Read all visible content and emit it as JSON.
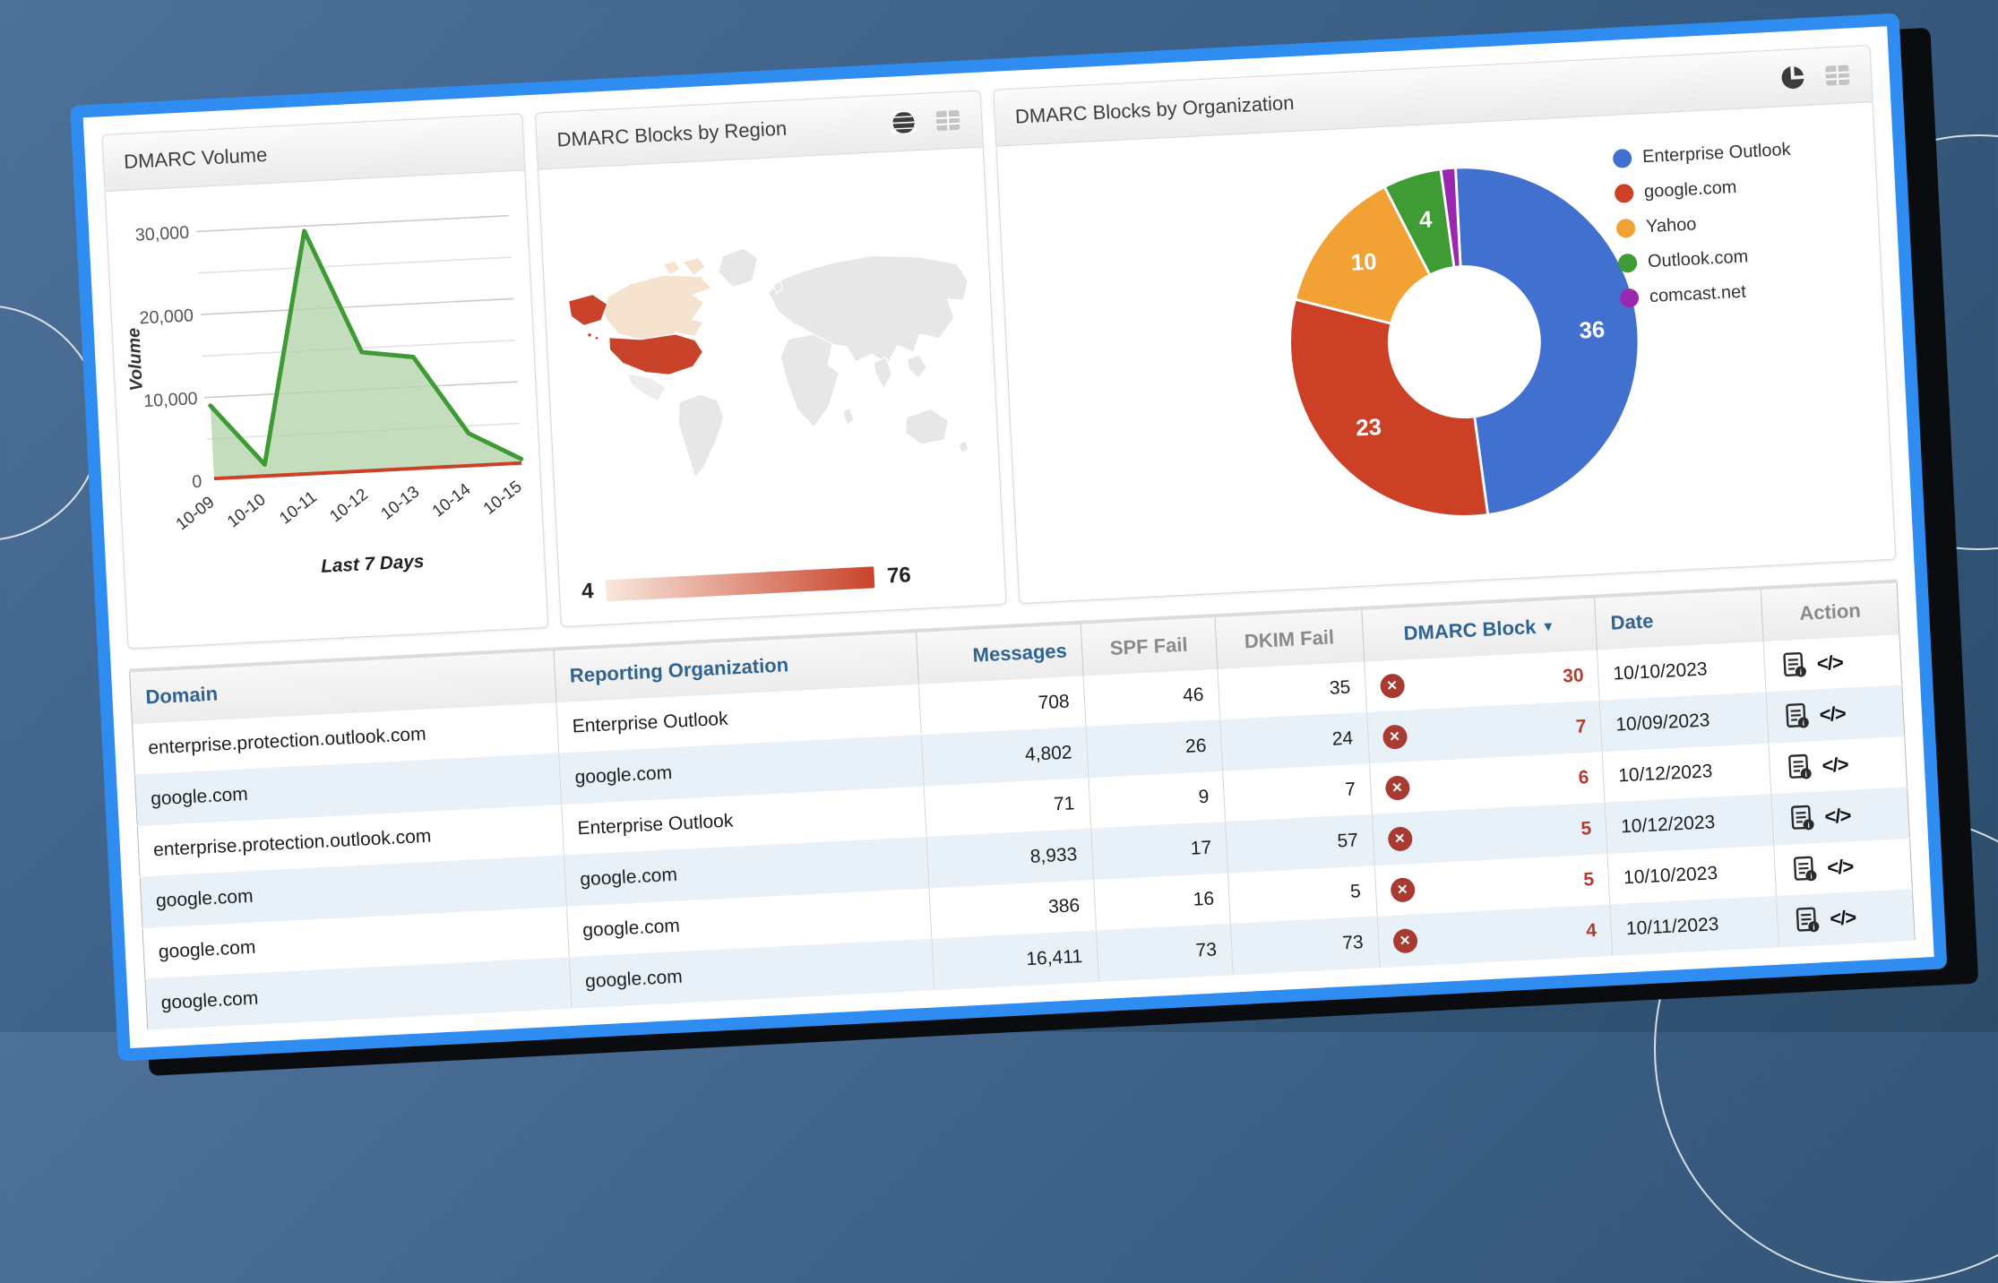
{
  "colors": {
    "board_border": "#2f8cf0",
    "board_shadow": "#0a0c10",
    "row_alt": "#e9f1f8",
    "header_blue": "#2f6391",
    "header_gray": "#8a8a8a",
    "dmarc_red": "#b23b2e",
    "badge_red": "#a93a31"
  },
  "panels": {
    "volume": {
      "title": "DMARC Volume"
    },
    "region": {
      "title": "DMARC Blocks by Region",
      "legend_min": "4",
      "legend_max": "76"
    },
    "organization": {
      "title": "DMARC Blocks by Organization"
    }
  },
  "table": {
    "headers": {
      "domain": "Domain",
      "org": "Reporting Organization",
      "messages": "Messages",
      "spf": "SPF Fail",
      "dkim": "DKIM Fail",
      "dmarc": "DMARC Block",
      "date": "Date",
      "action": "Action"
    },
    "sort_indicator": "▼",
    "badge_glyph": "✕",
    "code_icon_text": "</>",
    "rows": [
      {
        "domain": "enterprise.protection.outlook.com",
        "org": "Enterprise Outlook",
        "messages": "708",
        "spf": "46",
        "dkim": "35",
        "dmarc": "30",
        "date": "10/10/2023"
      },
      {
        "domain": "google.com",
        "org": "google.com",
        "messages": "4,802",
        "spf": "26",
        "dkim": "24",
        "dmarc": "7",
        "date": "10/09/2023"
      },
      {
        "domain": "enterprise.protection.outlook.com",
        "org": "Enterprise Outlook",
        "messages": "71",
        "spf": "9",
        "dkim": "7",
        "dmarc": "6",
        "date": "10/12/2023"
      },
      {
        "domain": "google.com",
        "org": "google.com",
        "messages": "8,933",
        "spf": "17",
        "dkim": "57",
        "dmarc": "5",
        "date": "10/12/2023"
      },
      {
        "domain": "google.com",
        "org": "google.com",
        "messages": "386",
        "spf": "16",
        "dkim": "5",
        "dmarc": "5",
        "date": "10/10/2023"
      },
      {
        "domain": "google.com",
        "org": "google.com",
        "messages": "16,411",
        "spf": "73",
        "dkim": "73",
        "dmarc": "4",
        "date": "10/11/2023"
      }
    ]
  },
  "chart_data": [
    {
      "type": "area",
      "title": "DMARC Volume",
      "x": [
        "10-09",
        "10-10",
        "10-11",
        "10-12",
        "10-13",
        "10-14",
        "10-15"
      ],
      "series": [
        {
          "name": "Volume",
          "color": "#3e9b33",
          "fill": "#b5d5ab",
          "values": [
            9000,
            1600,
            29400,
            14500,
            13600,
            4100,
            700
          ]
        },
        {
          "name": "red-baseline-series",
          "color": "#cc4125",
          "values": [
            0,
            0,
            0,
            0,
            0,
            0,
            0
          ]
        }
      ],
      "xlabel": "Last 7 Days",
      "ylabel": "Volume",
      "ylim": [
        0,
        30000
      ],
      "yticks": [
        0,
        10000,
        20000,
        30000
      ],
      "grid": true
    },
    {
      "type": "choropleth_map",
      "title": "DMARC Blocks by Region",
      "regions": [
        {
          "name": "United States",
          "value": 76,
          "color": "#c9432a"
        },
        {
          "name": "Canada",
          "value": 4,
          "color": "#f5e3d0"
        }
      ],
      "scale": {
        "min": 4,
        "max": 76,
        "min_color": "#f8e8dd",
        "max_color": "#c9432a"
      },
      "base_land_color": "#e7e7e7"
    },
    {
      "type": "donut",
      "title": "DMARC Blocks by Organization",
      "labels": [
        "Enterprise Outlook",
        "google.com",
        "Yahoo",
        "Outlook.com",
        "comcast.net"
      ],
      "values": [
        36,
        23,
        10,
        4,
        1
      ],
      "colors": [
        "#4170cf",
        "#cc4125",
        "#f2a134",
        "#3f9c35",
        "#9a27af"
      ],
      "legend_position": "right",
      "label_color": "#ffffff"
    }
  ]
}
